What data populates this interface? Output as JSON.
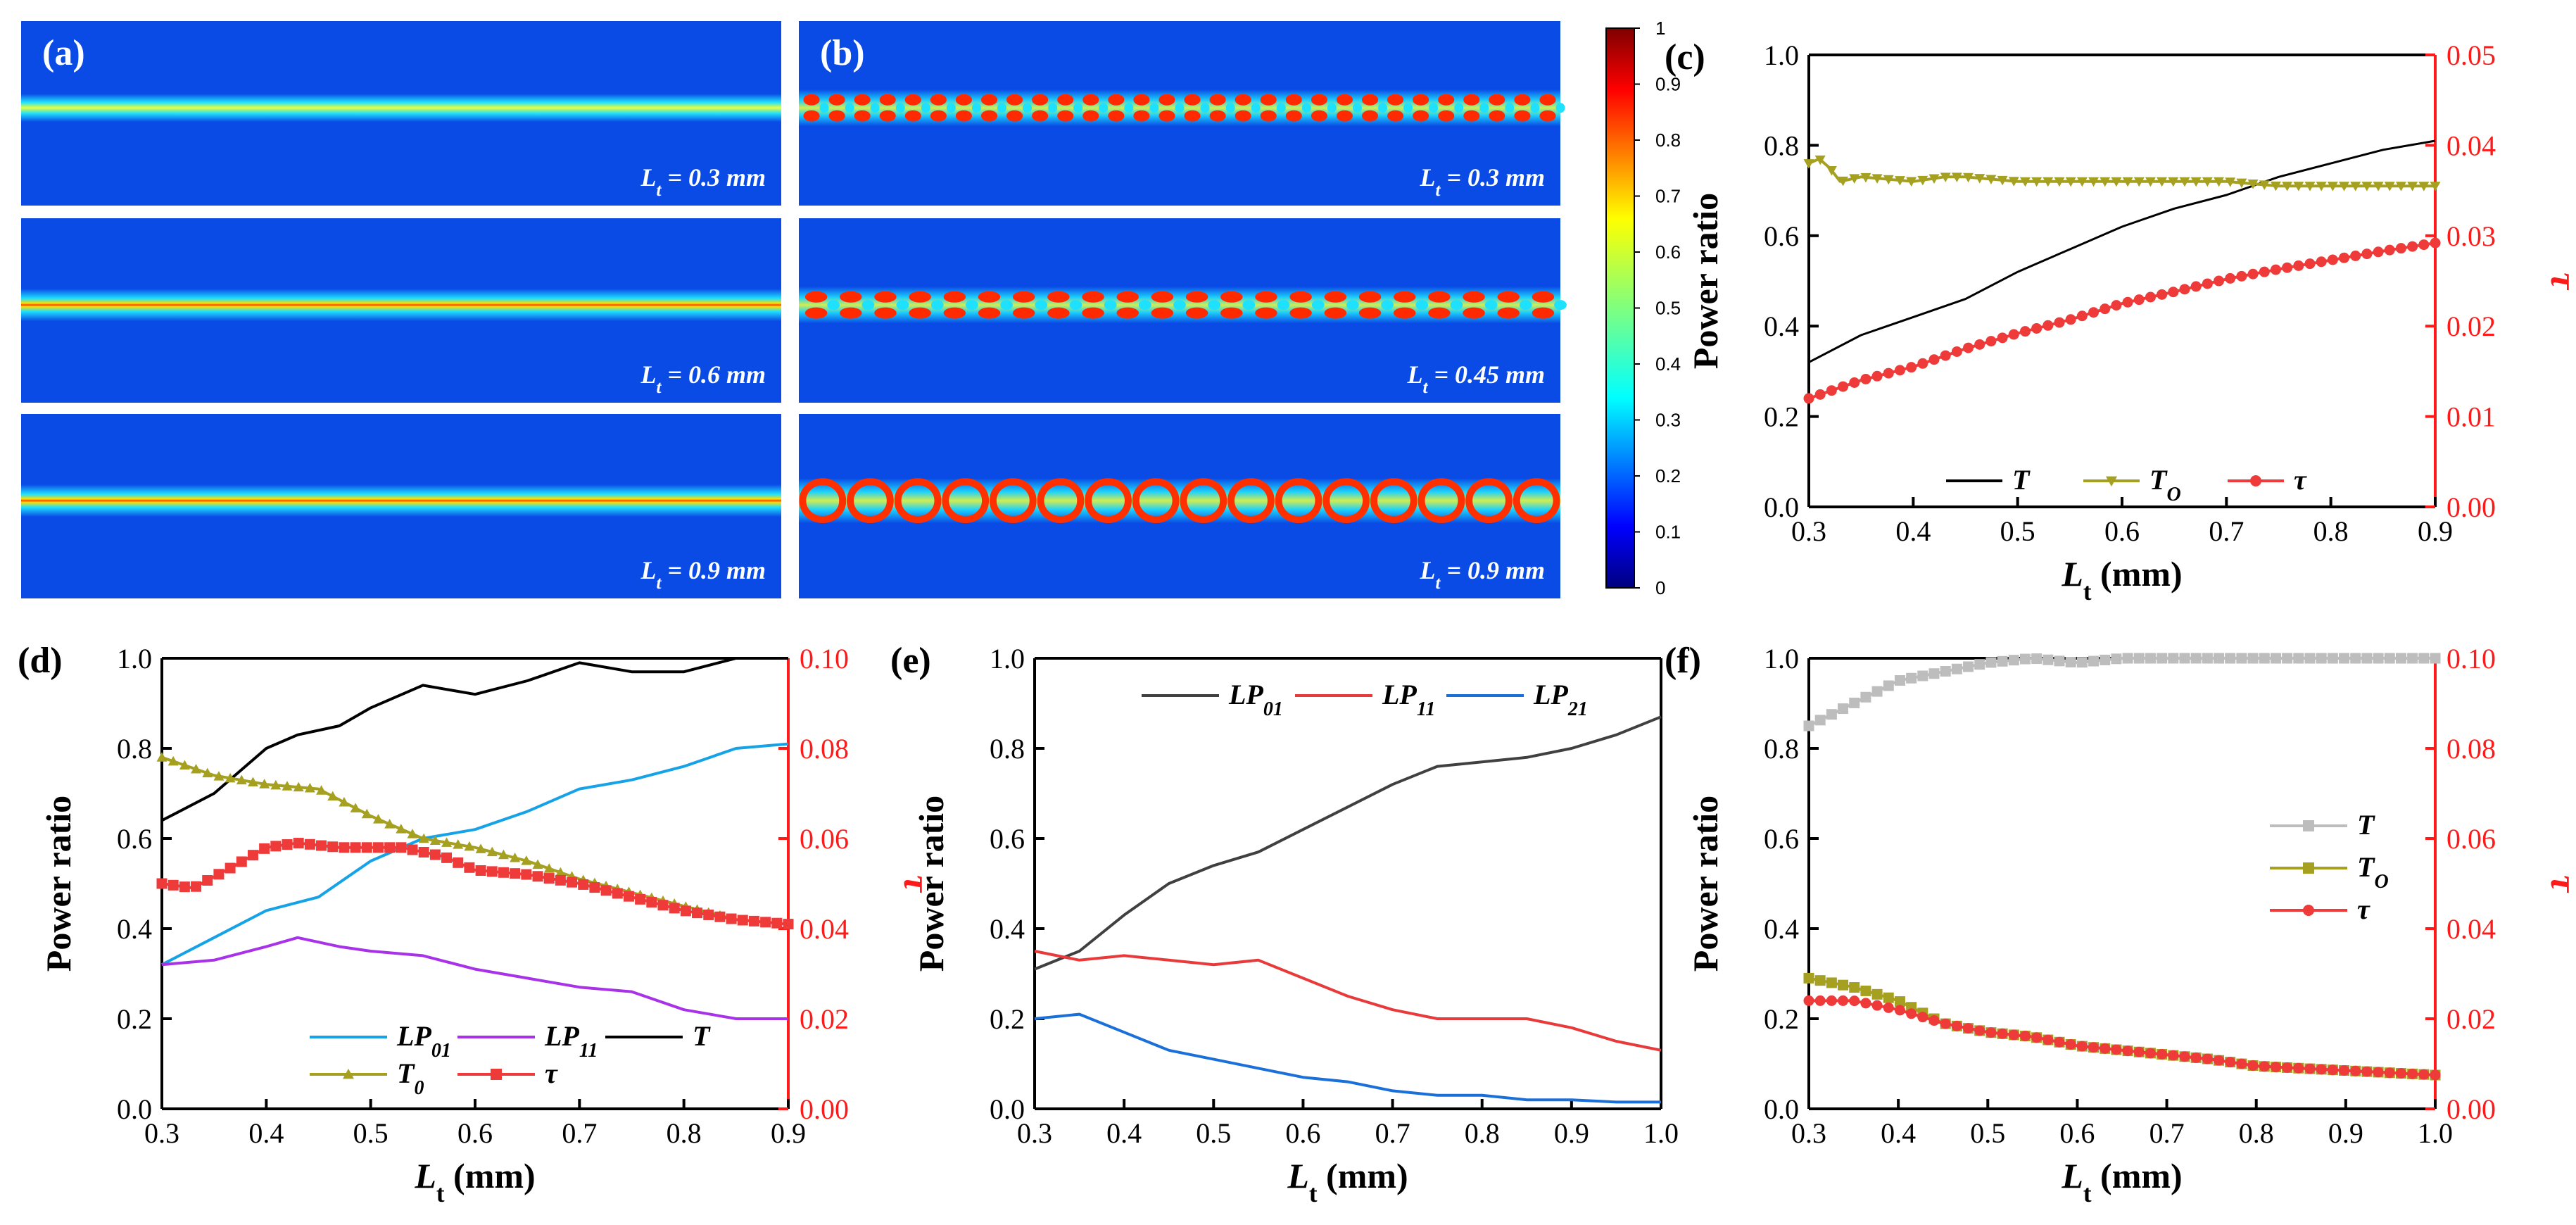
{
  "colors": {
    "heat_bg": "#0a4be6",
    "T_black": "#000000",
    "To_olive": "#a5a020",
    "tau_red": "#ef3a3a",
    "lp01_blue": "#16a2e6",
    "lp11_purple": "#a832e8",
    "lp21_blue": "#1a6fd8",
    "lp01e_gray": "#404040",
    "lp11e_red": "#e83a3a",
    "T_gray": "#bdbdbd"
  },
  "heatmaps": {
    "a": {
      "letter": "(a)",
      "panels": [
        {
          "label_pre": "L",
          "label_sub": "t",
          "label_post": " = 0.3 mm"
        },
        {
          "label_pre": "L",
          "label_sub": "t",
          "label_post": " = 0.6 mm"
        },
        {
          "label_pre": "L",
          "label_sub": "t",
          "label_post": " = 0.9 mm"
        }
      ]
    },
    "b": {
      "letter": "(b)",
      "panels": [
        {
          "label_pre": "L",
          "label_sub": "t",
          "label_post": " = 0.3 mm"
        },
        {
          "label_pre": "L",
          "label_sub": "t",
          "label_post": " = 0.45 mm"
        },
        {
          "label_pre": "L",
          "label_sub": "t",
          "label_post": " = 0.9 mm"
        }
      ]
    },
    "colorbar": {
      "ticks": [
        "0",
        "0.1",
        "0.2",
        "0.3",
        "0.4",
        "0.5",
        "0.6",
        "0.7",
        "0.8",
        "0.9",
        "1"
      ]
    }
  },
  "chart_data": [
    {
      "id": "c",
      "letter": "(c)",
      "type": "line",
      "xlabel_main": "L",
      "xlabel_sub": "t",
      "xlabel_unit": " (mm)",
      "ylabel": "Power ratio",
      "y2label": "τ",
      "xlim": [
        0.3,
        0.9
      ],
      "ylim": [
        0,
        1.0
      ],
      "y2lim": [
        0,
        0.05
      ],
      "xticks": [
        "0.3",
        "0.4",
        "0.5",
        "0.6",
        "0.7",
        "0.8",
        "0.9"
      ],
      "yticks": [
        "0.0",
        "0.2",
        "0.4",
        "0.6",
        "0.8",
        "1.0"
      ],
      "y2ticks": [
        "0.00",
        "0.01",
        "0.02",
        "0.03",
        "0.04",
        "0.05"
      ],
      "series": [
        {
          "name": "T",
          "axis": "left",
          "marker": "none",
          "x": [
            0.3,
            0.35,
            0.4,
            0.45,
            0.5,
            0.55,
            0.6,
            0.65,
            0.7,
            0.75,
            0.8,
            0.85,
            0.9
          ],
          "values": [
            0.32,
            0.38,
            0.42,
            0.46,
            0.52,
            0.57,
            0.62,
            0.66,
            0.69,
            0.73,
            0.76,
            0.79,
            0.81
          ]
        },
        {
          "name": "T_O",
          "axis": "left",
          "marker": "triangle-down",
          "x": [
            0.3,
            0.31,
            0.32,
            0.33,
            0.35,
            0.4,
            0.43,
            0.45,
            0.5,
            0.55,
            0.6,
            0.65,
            0.7,
            0.75,
            0.8,
            0.85,
            0.9
          ],
          "values": [
            0.76,
            0.77,
            0.75,
            0.72,
            0.73,
            0.72,
            0.73,
            0.73,
            0.72,
            0.72,
            0.72,
            0.72,
            0.72,
            0.71,
            0.71,
            0.71,
            0.71
          ]
        },
        {
          "name": "τ",
          "axis": "right",
          "marker": "circle",
          "x": [
            0.3,
            0.35,
            0.4,
            0.45,
            0.5,
            0.55,
            0.6,
            0.65,
            0.7,
            0.75,
            0.8,
            0.85,
            0.9
          ],
          "values": [
            0.012,
            0.014,
            0.0155,
            0.0175,
            0.0192,
            0.0207,
            0.0225,
            0.0238,
            0.0252,
            0.0263,
            0.0273,
            0.0283,
            0.0292
          ]
        }
      ],
      "legend": [
        {
          "label_pre": "T",
          "label_sub": ""
        },
        {
          "label_pre": "T",
          "label_sub": "O"
        },
        {
          "label_pre": "τ",
          "label_sub": ""
        }
      ]
    },
    {
      "id": "d",
      "letter": "(d)",
      "type": "line",
      "xlabel_main": "L",
      "xlabel_sub": "t",
      "xlabel_unit": " (mm)",
      "ylabel": "Power ratio",
      "y2label": "τ",
      "xlim": [
        0.3,
        0.9
      ],
      "ylim": [
        0,
        1.0
      ],
      "y2lim": [
        0,
        0.1
      ],
      "xticks": [
        "0.3",
        "0.4",
        "0.5",
        "0.6",
        "0.7",
        "0.8",
        "0.9"
      ],
      "yticks": [
        "0.0",
        "0.2",
        "0.4",
        "0.6",
        "0.8",
        "1.0"
      ],
      "y2ticks": [
        "0.00",
        "0.02",
        "0.04",
        "0.06",
        "0.08",
        "0.10"
      ],
      "series": [
        {
          "name": "LP01",
          "axis": "left",
          "marker": "none",
          "x": [
            0.3,
            0.35,
            0.4,
            0.45,
            0.5,
            0.55,
            0.6,
            0.65,
            0.7,
            0.75,
            0.8,
            0.85,
            0.9
          ],
          "values": [
            0.32,
            0.38,
            0.44,
            0.47,
            0.55,
            0.6,
            0.62,
            0.66,
            0.71,
            0.73,
            0.76,
            0.8,
            0.81
          ]
        },
        {
          "name": "LP11",
          "axis": "left",
          "marker": "none",
          "x": [
            0.3,
            0.35,
            0.4,
            0.43,
            0.47,
            0.5,
            0.55,
            0.6,
            0.65,
            0.7,
            0.75,
            0.8,
            0.85,
            0.9
          ],
          "values": [
            0.32,
            0.33,
            0.36,
            0.38,
            0.36,
            0.35,
            0.34,
            0.31,
            0.29,
            0.27,
            0.26,
            0.22,
            0.2,
            0.2
          ]
        },
        {
          "name": "T",
          "axis": "left",
          "marker": "none",
          "x": [
            0.3,
            0.35,
            0.4,
            0.43,
            0.47,
            0.5,
            0.55,
            0.6,
            0.65,
            0.7,
            0.75,
            0.8,
            0.85,
            0.9
          ],
          "values": [
            0.64,
            0.7,
            0.8,
            0.83,
            0.85,
            0.89,
            0.94,
            0.92,
            0.95,
            0.99,
            0.97,
            0.97,
            1.0,
            1.0
          ]
        },
        {
          "name": "T0",
          "axis": "left",
          "marker": "triangle-up",
          "x": [
            0.3,
            0.35,
            0.4,
            0.45,
            0.5,
            0.55,
            0.6,
            0.65,
            0.7,
            0.75,
            0.8,
            0.85,
            0.9
          ],
          "values": [
            0.78,
            0.74,
            0.72,
            0.71,
            0.65,
            0.6,
            0.58,
            0.55,
            0.51,
            0.48,
            0.45,
            0.42,
            0.41
          ]
        },
        {
          "name": "τ",
          "axis": "right",
          "marker": "square",
          "x": [
            0.3,
            0.33,
            0.37,
            0.4,
            0.43,
            0.47,
            0.5,
            0.53,
            0.57,
            0.6,
            0.65,
            0.7,
            0.75,
            0.8,
            0.85,
            0.9
          ],
          "values": [
            0.05,
            0.049,
            0.054,
            0.058,
            0.059,
            0.058,
            0.058,
            0.058,
            0.056,
            0.053,
            0.052,
            0.05,
            0.047,
            0.044,
            0.042,
            0.041
          ]
        }
      ],
      "legend": [
        {
          "label_pre": "LP",
          "label_sub": "01"
        },
        {
          "label_pre": "LP",
          "label_sub": "11"
        },
        {
          "label_pre": "T",
          "label_sub": ""
        },
        {
          "label_pre": "T",
          "label_sub": "0"
        },
        {
          "label_pre": "τ",
          "label_sub": ""
        }
      ]
    },
    {
      "id": "e",
      "letter": "(e)",
      "type": "line",
      "xlabel_main": "L",
      "xlabel_sub": "t",
      "xlabel_unit": " (mm)",
      "ylabel": "Power ratio",
      "xlim": [
        0.3,
        1.0
      ],
      "ylim": [
        0,
        1.0
      ],
      "xticks": [
        "0.3",
        "0.4",
        "0.5",
        "0.6",
        "0.7",
        "0.8",
        "0.9",
        "1.0"
      ],
      "yticks": [
        "0.0",
        "0.2",
        "0.4",
        "0.6",
        "0.8",
        "1.0"
      ],
      "series": [
        {
          "name": "LP01",
          "axis": "left",
          "marker": "none",
          "x": [
            0.3,
            0.35,
            0.4,
            0.45,
            0.5,
            0.55,
            0.6,
            0.65,
            0.7,
            0.75,
            0.8,
            0.85,
            0.9,
            0.95,
            1.0
          ],
          "values": [
            0.31,
            0.35,
            0.43,
            0.5,
            0.54,
            0.57,
            0.62,
            0.67,
            0.72,
            0.76,
            0.77,
            0.78,
            0.8,
            0.83,
            0.87
          ]
        },
        {
          "name": "LP11",
          "axis": "left",
          "marker": "none",
          "x": [
            0.3,
            0.35,
            0.4,
            0.45,
            0.5,
            0.55,
            0.6,
            0.65,
            0.7,
            0.75,
            0.8,
            0.85,
            0.9,
            0.95,
            1.0
          ],
          "values": [
            0.35,
            0.33,
            0.34,
            0.33,
            0.32,
            0.33,
            0.29,
            0.25,
            0.22,
            0.2,
            0.2,
            0.2,
            0.18,
            0.15,
            0.13
          ]
        },
        {
          "name": "LP21",
          "axis": "left",
          "marker": "none",
          "x": [
            0.3,
            0.35,
            0.4,
            0.45,
            0.5,
            0.55,
            0.6,
            0.65,
            0.7,
            0.75,
            0.8,
            0.85,
            0.9,
            0.95,
            1.0
          ],
          "values": [
            0.2,
            0.21,
            0.17,
            0.13,
            0.11,
            0.09,
            0.07,
            0.06,
            0.04,
            0.03,
            0.03,
            0.02,
            0.02,
            0.015,
            0.015
          ]
        }
      ],
      "legend": [
        {
          "label_pre": "LP",
          "label_sub": "01"
        },
        {
          "label_pre": "LP",
          "label_sub": "11"
        },
        {
          "label_pre": "LP",
          "label_sub": "21"
        }
      ]
    },
    {
      "id": "f",
      "letter": "(f)",
      "type": "line",
      "xlabel_main": "L",
      "xlabel_sub": "t",
      "xlabel_unit": " (mm)",
      "ylabel": "Power ratio",
      "y2label": "τ",
      "xlim": [
        0.3,
        1.0
      ],
      "ylim": [
        0,
        1.0
      ],
      "y2lim": [
        0,
        0.1
      ],
      "xticks": [
        "0.3",
        "0.4",
        "0.5",
        "0.6",
        "0.7",
        "0.8",
        "0.9",
        "1.0"
      ],
      "yticks": [
        "0.0",
        "0.2",
        "0.4",
        "0.6",
        "0.8",
        "1.0"
      ],
      "y2ticks": [
        "0.00",
        "0.02",
        "0.04",
        "0.06",
        "0.08",
        "0.10"
      ],
      "series": [
        {
          "name": "T",
          "axis": "left",
          "marker": "square",
          "x": [
            0.3,
            0.33,
            0.37,
            0.4,
            0.45,
            0.5,
            0.55,
            0.6,
            0.65,
            0.7,
            0.75,
            0.8,
            0.85,
            0.9,
            0.95,
            1.0
          ],
          "values": [
            0.85,
            0.88,
            0.92,
            0.95,
            0.97,
            0.99,
            1.0,
            0.99,
            1.0,
            1.0,
            1.0,
            1.0,
            1.0,
            1.0,
            1.0,
            1.0
          ]
        },
        {
          "name": "T_O",
          "axis": "left",
          "marker": "square",
          "x": [
            0.3,
            0.35,
            0.4,
            0.45,
            0.5,
            0.55,
            0.6,
            0.65,
            0.7,
            0.75,
            0.8,
            0.85,
            0.9,
            0.95,
            1.0
          ],
          "values": [
            0.29,
            0.27,
            0.24,
            0.19,
            0.17,
            0.16,
            0.14,
            0.13,
            0.12,
            0.11,
            0.095,
            0.09,
            0.085,
            0.08,
            0.075
          ]
        },
        {
          "name": "τ",
          "axis": "right",
          "marker": "circle",
          "x": [
            0.3,
            0.35,
            0.4,
            0.45,
            0.5,
            0.55,
            0.6,
            0.65,
            0.7,
            0.75,
            0.8,
            0.85,
            0.9,
            0.95,
            1.0
          ],
          "values": [
            0.024,
            0.024,
            0.022,
            0.019,
            0.017,
            0.016,
            0.014,
            0.013,
            0.012,
            0.011,
            0.0095,
            0.009,
            0.0085,
            0.008,
            0.0075
          ]
        }
      ],
      "legend": [
        {
          "label_pre": "T",
          "label_sub": ""
        },
        {
          "label_pre": "T",
          "label_sub": "O"
        },
        {
          "label_pre": "τ",
          "label_sub": ""
        }
      ]
    }
  ]
}
